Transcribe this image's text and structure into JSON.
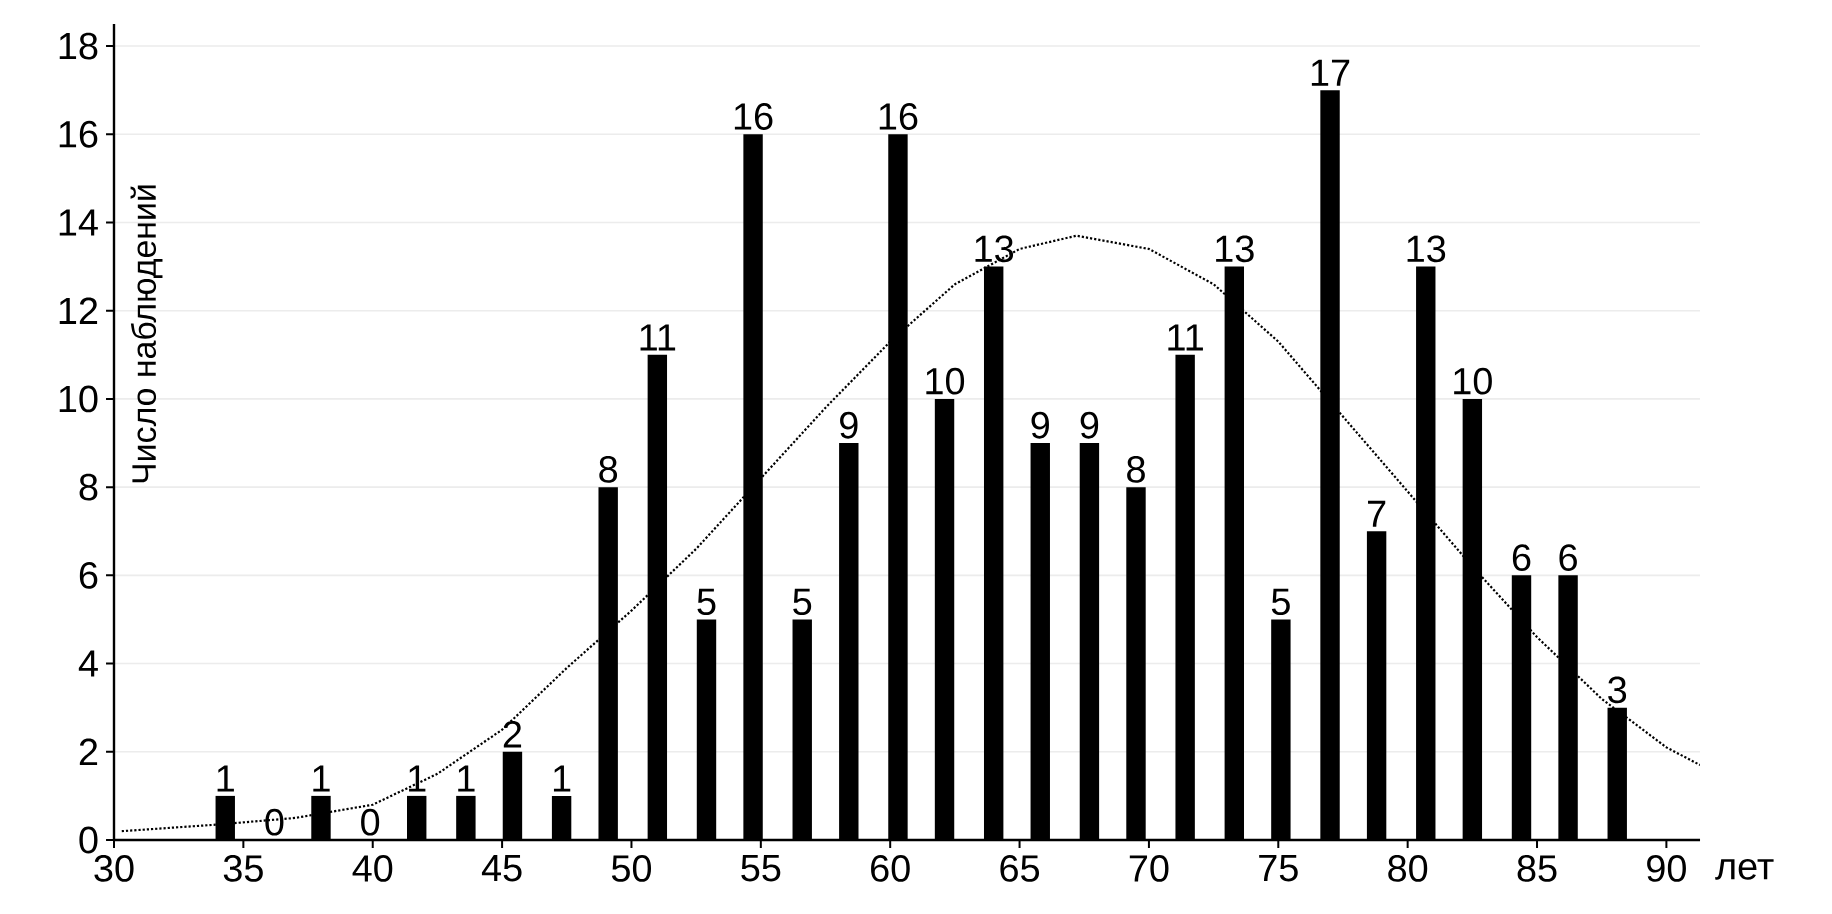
{
  "chart_data": {
    "type": "bar",
    "xlabel": "лет",
    "ylabel": "Число наблюдений",
    "x": [
      34.3,
      36.2,
      38.0,
      39.9,
      41.7,
      43.6,
      45.4,
      47.3,
      49.1,
      51.0,
      52.9,
      54.7,
      56.6,
      58.4,
      60.3,
      62.1,
      64.0,
      65.8,
      67.7,
      69.5,
      71.4,
      73.3,
      75.1,
      77.0,
      78.8,
      80.7,
      82.5,
      84.4,
      86.2,
      88.1
    ],
    "series": [
      {
        "color": "#000000",
        "values": [
          1,
          0,
          1,
          0,
          1,
          1,
          2,
          1,
          8,
          11,
          5,
          16,
          5,
          9,
          16,
          10,
          13,
          9,
          9,
          8,
          11,
          13,
          5,
          17,
          7,
          13,
          10,
          6,
          6,
          3
        ],
        "value_labels": [
          "1",
          "0",
          "1",
          "0",
          "1",
          "1",
          "2",
          "1",
          "8",
          "11",
          "5",
          "16",
          "5",
          "9",
          "16",
          "10",
          "13",
          "9",
          "9",
          "8",
          "11",
          "13",
          "5",
          "17",
          "7",
          "13",
          "10",
          "6",
          "6",
          "3"
        ]
      },
      {
        "type": "line",
        "color": "#000000",
        "line_style": "dotted",
        "marker": "none",
        "x": [
          30.3,
          34,
          37,
          40,
          42.5,
          45,
          47.5,
          50,
          52.5,
          55,
          57.5,
          60,
          62.5,
          65,
          67.2,
          70,
          72.5,
          75,
          77.5,
          80,
          82.5,
          85,
          87.5,
          90,
          91.3
        ],
        "values": [
          0.2,
          0.35,
          0.5,
          0.8,
          1.5,
          2.5,
          3.9,
          5.2,
          6.6,
          8.2,
          9.8,
          11.3,
          12.6,
          13.4,
          13.7,
          13.4,
          12.6,
          11.3,
          9.6,
          7.9,
          6.2,
          4.6,
          3.2,
          2.1,
          1.7
        ]
      }
    ],
    "grid": "y",
    "xlim": [
      30,
      91.3
    ],
    "ylim": [
      0,
      18.5
    ],
    "xticks": [
      30,
      35,
      40,
      45,
      50,
      55,
      60,
      65,
      70,
      75,
      80,
      85,
      90
    ],
    "yticks": [
      0,
      2,
      4,
      6,
      8,
      10,
      12,
      14,
      16,
      18
    ]
  }
}
